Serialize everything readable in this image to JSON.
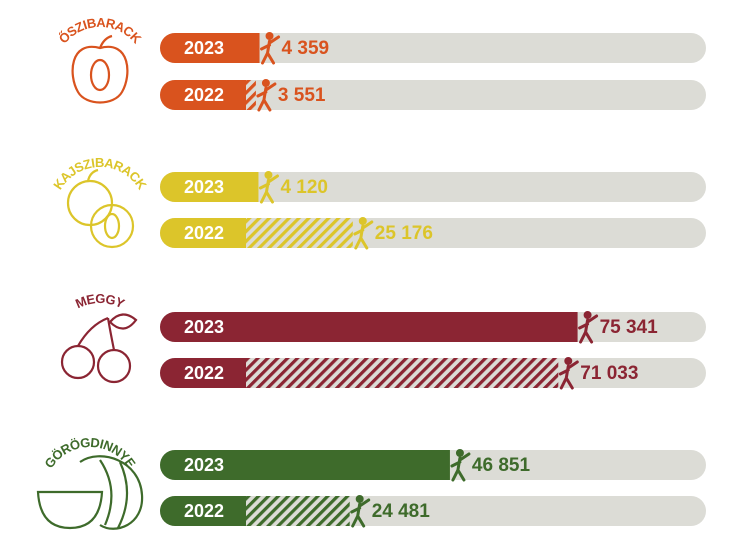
{
  "chart_data": {
    "type": "bar",
    "categories": [
      "ŐSZIBARACK",
      "KAJSZIBARACK",
      "MEGGY",
      "GÖRÖGDINNYE"
    ],
    "colors": [
      "#d9531e",
      "#dcc52a",
      "#8b2533",
      "#3e6b2b"
    ],
    "series": [
      {
        "name": "2023",
        "values": [
          4359,
          4120,
          75341,
          46851
        ],
        "value_labels": [
          "4 359",
          "4 120",
          "75 341",
          "46 851"
        ]
      },
      {
        "name": "2022",
        "values": [
          3551,
          25176,
          71033,
          24481
        ],
        "value_labels": [
          "3 551",
          "25 176",
          "71 033",
          "24 481"
        ]
      }
    ],
    "xlim": [
      0,
      104000
    ]
  }
}
